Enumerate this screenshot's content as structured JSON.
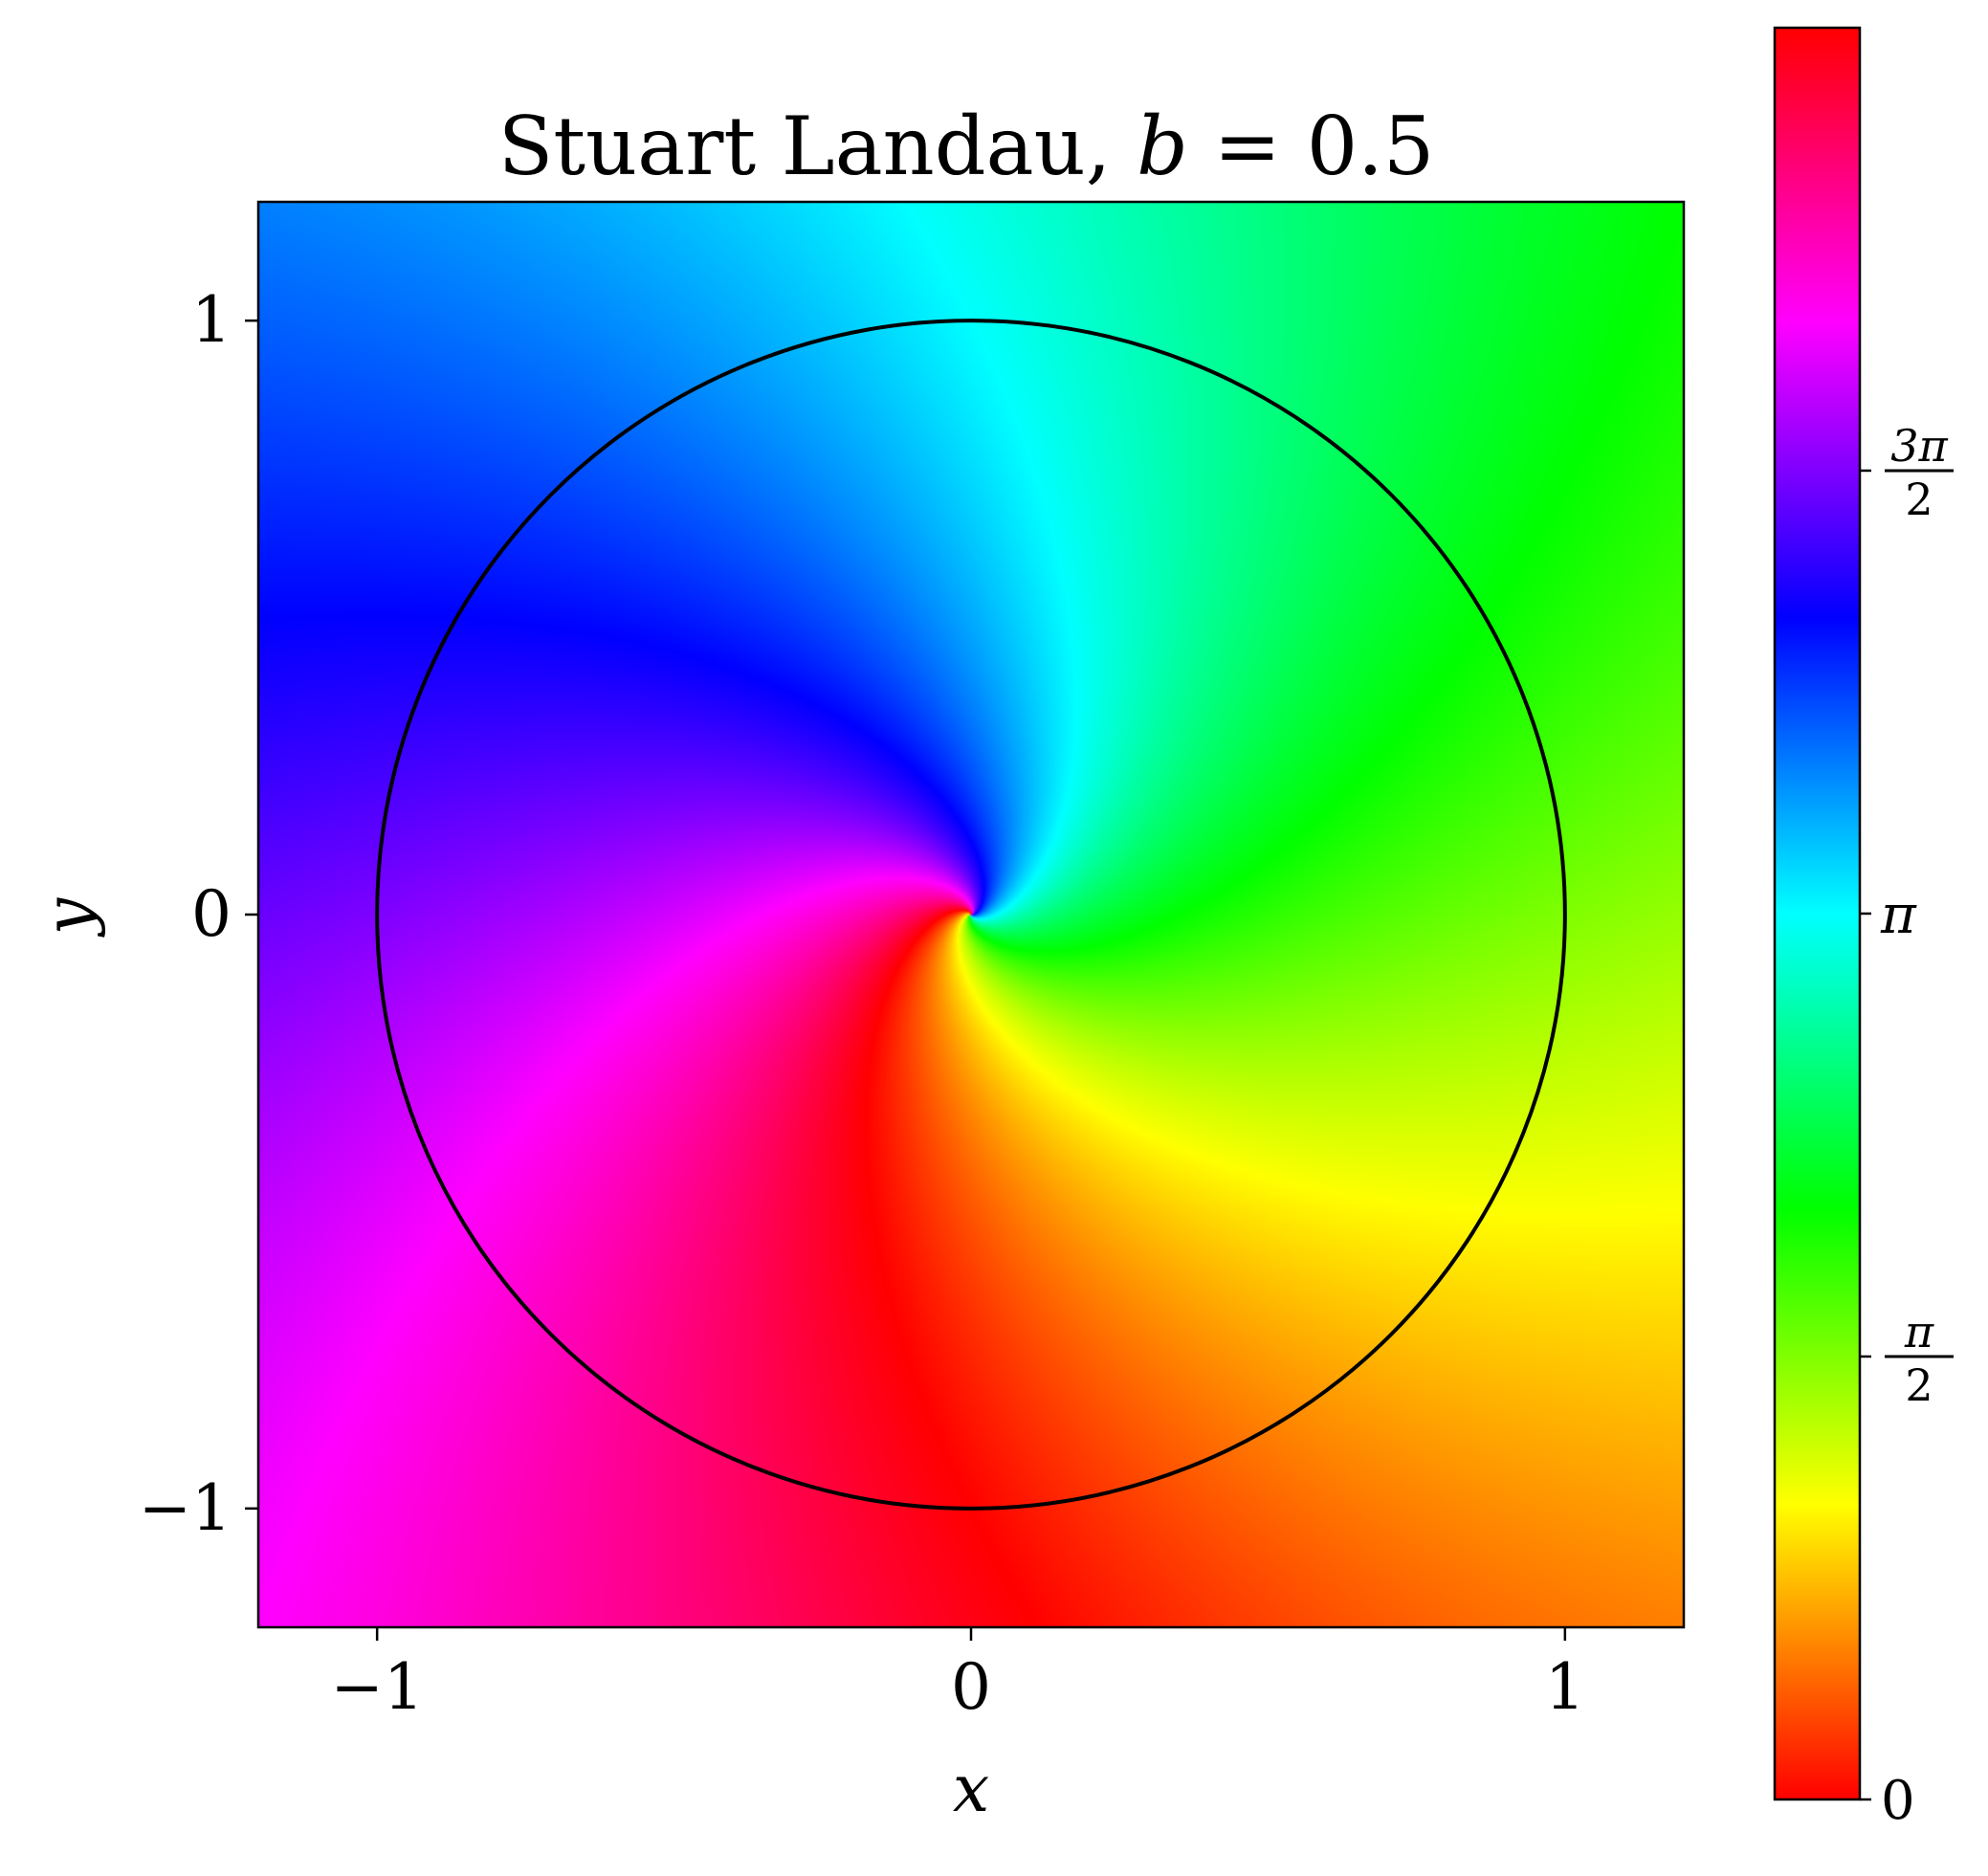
{
  "chart_data": {
    "type": "heatmap",
    "title": "Stuart Landau, b = 0.5",
    "title_parts": {
      "prefix": "Stuart Landau, ",
      "var": "b",
      "suffix": " = 0.5"
    },
    "xlabel": "x",
    "ylabel": "y",
    "xlim": [
      -1.2,
      1.2
    ],
    "ylim": [
      -1.2,
      1.2
    ],
    "x_ticks": [
      {
        "value": -1,
        "label": "−1"
      },
      {
        "value": 0,
        "label": "0"
      },
      {
        "value": 1,
        "label": "1"
      }
    ],
    "y_ticks": [
      {
        "value": 1,
        "label": "1"
      },
      {
        "value": 0,
        "label": "0"
      },
      {
        "value": -1,
        "label": "−1"
      }
    ],
    "parameter_b": 0.5,
    "limit_cycle_radius": 1,
    "colormap": "hsv",
    "colorbar": {
      "range": [
        0,
        6.283
      ],
      "ticks": [
        {
          "value": 0,
          "label": "0",
          "kind": "plain"
        },
        {
          "value": 1.5708,
          "label_num": "π",
          "label_den": "2",
          "kind": "frac"
        },
        {
          "value": 3.14159,
          "label": "π",
          "kind": "plain"
        },
        {
          "value": 4.71239,
          "label_num": "3π",
          "label_den": "2",
          "kind": "frac"
        }
      ]
    },
    "grid": false,
    "legend": "none"
  }
}
